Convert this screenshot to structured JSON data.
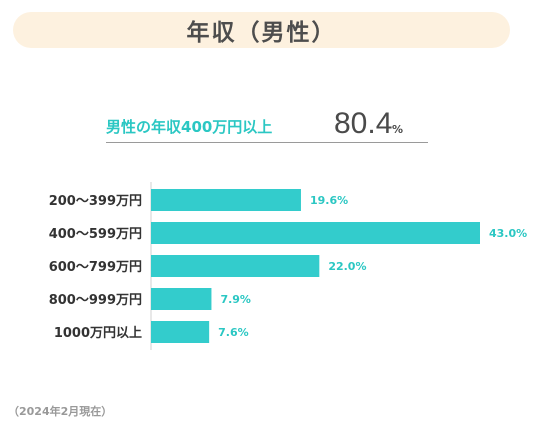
{
  "header": {
    "title": "年収（男性）"
  },
  "headline": {
    "label": "男性の年収400万円以上",
    "value": "80.4",
    "unit": "%"
  },
  "footnote": "（2024年2月現在）",
  "colors": {
    "bar": "#33cccc",
    "value_label": "#2bc7c3",
    "category_label": "#333333"
  },
  "chart_data": {
    "type": "bar",
    "orientation": "horizontal",
    "categories": [
      "200～399万円",
      "400～599万円",
      "600～799万円",
      "800～999万円",
      "1000万円以上"
    ],
    "values": [
      19.6,
      43.0,
      22.0,
      7.9,
      7.6
    ],
    "value_labels": [
      "19.6%",
      "43.0%",
      "22.0%",
      "7.9%",
      "7.6%"
    ],
    "title": "",
    "xlabel": "",
    "ylabel": "",
    "xlim": [
      0,
      43.0
    ],
    "grid": false
  }
}
